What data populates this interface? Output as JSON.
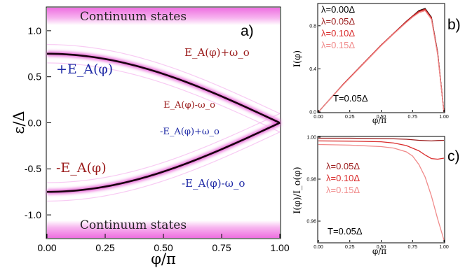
{
  "figure": {
    "colors": {
      "black": "#000000",
      "darkred": "#9b1c1c",
      "red": "#d92b2b",
      "pink": "#f08a8a",
      "blue": "#1f2aa6",
      "magenta": "#e85fd6"
    }
  },
  "chart_data": [
    {
      "panel": "a",
      "type": "heatmap",
      "panel_label": "a)",
      "xlabel": "φ/π",
      "ylabel": "ε/Δ",
      "xlim": [
        0,
        1.0
      ],
      "ylim": [
        -1.25,
        1.25
      ],
      "xticks": [
        "0.00",
        "0.25",
        "0.50",
        "0.75",
        "1.00"
      ],
      "yticks": [
        "1.0",
        "0.5",
        "0.0",
        "-0.5",
        "-1.0"
      ],
      "xtick_values": [
        0,
        0.25,
        0.5,
        0.75,
        1.0
      ],
      "ytick_values": [
        1.0,
        0.5,
        0.0,
        -0.5,
        -1.0
      ],
      "continuum_label_top": "Continuum states",
      "continuum_label_bottom": "Continuum states",
      "branch_labels": {
        "plus_EA": "+E_A(φ)",
        "minus_EA": "-E_A(φ)",
        "EA_plus_w": "E_A(φ)+ω_o",
        "EA_minus_w": "E_A(φ)-ω_o",
        "mEA_plus_w": "-E_A(φ)+ω_o",
        "mEA_minus_w": "-E_A(φ)-ω_o"
      },
      "series": [
        {
          "role": "andreev_positive",
          "x": [
            0,
            0.25,
            0.5,
            0.75,
            0.9,
            1.0
          ],
          "y": [
            0.75,
            0.69,
            0.53,
            0.29,
            0.12,
            0.0
          ]
        },
        {
          "role": "andreev_negative",
          "x": [
            0,
            0.25,
            0.5,
            0.75,
            0.9,
            1.0
          ],
          "y": [
            -0.75,
            -0.69,
            -0.53,
            -0.29,
            -0.12,
            0.0
          ]
        }
      ],
      "omega_o": 0.1
    },
    {
      "panel": "b",
      "type": "line",
      "panel_label": "b)",
      "xlabel": "φ/π",
      "ylabel": "I(φ)",
      "xlim": [
        0,
        1.0
      ],
      "ylim": [
        0,
        1.0
      ],
      "xticks": [
        "0.00",
        "0.25",
        "0.50",
        "0.75",
        "1.00"
      ],
      "yticks": [
        "0.0",
        "0.4",
        "0.8"
      ],
      "xtick_values": [
        0,
        0.25,
        0.5,
        0.75,
        1.0
      ],
      "ytick_values": [
        0,
        0.4,
        0.8
      ],
      "annotation": "T=0.05Δ",
      "legend": [
        "λ=0.00Δ",
        "λ=0.05Δ",
        "λ=0.10Δ",
        "λ=0.15Δ"
      ],
      "series": [
        {
          "name": "λ=0.00Δ",
          "x": [
            0,
            0.1,
            0.2,
            0.3,
            0.4,
            0.5,
            0.6,
            0.7,
            0.75,
            0.8,
            0.85,
            0.9,
            0.95,
            1.0
          ],
          "y": [
            0,
            0.13,
            0.26,
            0.38,
            0.5,
            0.62,
            0.73,
            0.84,
            0.89,
            0.94,
            0.96,
            0.88,
            0.55,
            0
          ]
        },
        {
          "name": "λ=0.05Δ",
          "x": [
            0,
            0.1,
            0.2,
            0.3,
            0.4,
            0.5,
            0.6,
            0.7,
            0.75,
            0.8,
            0.85,
            0.9,
            0.95,
            1.0
          ],
          "y": [
            0,
            0.13,
            0.26,
            0.38,
            0.5,
            0.62,
            0.73,
            0.84,
            0.89,
            0.935,
            0.955,
            0.875,
            0.545,
            0
          ]
        },
        {
          "name": "λ=0.10Δ",
          "x": [
            0,
            0.1,
            0.2,
            0.3,
            0.4,
            0.5,
            0.6,
            0.7,
            0.75,
            0.8,
            0.85,
            0.9,
            0.95,
            1.0
          ],
          "y": [
            0,
            0.13,
            0.26,
            0.38,
            0.5,
            0.62,
            0.73,
            0.835,
            0.885,
            0.93,
            0.95,
            0.87,
            0.54,
            0
          ]
        },
        {
          "name": "λ=0.15Δ",
          "x": [
            0,
            0.1,
            0.2,
            0.3,
            0.4,
            0.5,
            0.6,
            0.7,
            0.75,
            0.8,
            0.85,
            0.9,
            0.95,
            1.0
          ],
          "y": [
            0,
            0.13,
            0.255,
            0.375,
            0.495,
            0.615,
            0.725,
            0.83,
            0.88,
            0.92,
            0.94,
            0.86,
            0.53,
            0
          ]
        }
      ]
    },
    {
      "panel": "c",
      "type": "line",
      "panel_label": "c)",
      "xlabel": "φ/π",
      "ylabel": "I(φ)/I_o(φ)",
      "xlim": [
        0,
        1.0
      ],
      "ylim": [
        0.95,
        1.0
      ],
      "xticks": [
        "0.00",
        "0.25",
        "0.50",
        "0.75",
        "1.00"
      ],
      "yticks": [
        "1.00",
        "0.98",
        "0.96"
      ],
      "xtick_values": [
        0,
        0.25,
        0.5,
        0.75,
        1.0
      ],
      "ytick_values": [
        1.0,
        0.98,
        0.96
      ],
      "annotation": "T=0.05Δ",
      "legend": [
        "λ=0.05Δ",
        "λ=0.10Δ",
        "λ=0.15Δ"
      ],
      "series": [
        {
          "name": "λ=0.05Δ",
          "x": [
            0,
            0.25,
            0.5,
            0.6,
            0.7,
            0.8,
            0.9,
            0.95,
            1.0
          ],
          "y": [
            0.9995,
            0.9995,
            0.9993,
            0.9992,
            0.999,
            0.9985,
            0.9982,
            0.9984,
            0.9985
          ]
        },
        {
          "name": "λ=0.10Δ",
          "x": [
            0,
            0.25,
            0.5,
            0.6,
            0.7,
            0.8,
            0.85,
            0.9,
            0.95,
            1.0
          ],
          "y": [
            0.9982,
            0.9981,
            0.9978,
            0.9972,
            0.996,
            0.9935,
            0.9915,
            0.9898,
            0.9895,
            0.99
          ]
        },
        {
          "name": "λ=0.15Δ",
          "x": [
            0,
            0.25,
            0.5,
            0.6,
            0.7,
            0.75,
            0.8,
            0.85,
            0.9,
            0.95,
            1.0
          ],
          "y": [
            0.9965,
            0.9962,
            0.9955,
            0.9948,
            0.993,
            0.991,
            0.987,
            0.981,
            0.972,
            0.961,
            0.951
          ]
        }
      ]
    }
  ]
}
